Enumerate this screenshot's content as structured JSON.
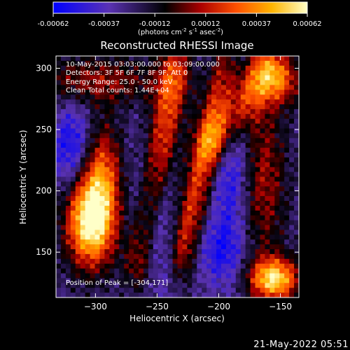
{
  "chart_data": {
    "type": "heatmap",
    "title": "Reconstructed RHESSI Image",
    "xlabel": "Heliocentric X (arcsec)",
    "ylabel": "Heliocentric Y (arcsec)",
    "xlim": [
      -332,
      -135
    ],
    "ylim": [
      113,
      310
    ],
    "xticks": [
      -300,
      -250,
      -200,
      -150
    ],
    "yticks": [
      150,
      200,
      250,
      300
    ],
    "colorbar": {
      "min": -0.00062,
      "max": 0.00062,
      "ticks": [
        "-0.00062",
        "-0.00037",
        "-0.00012",
        "0.00012",
        "0.00037",
        "0.00062"
      ],
      "unit_text": "(photons cm",
      "unit_sup1": "-2",
      "unit_mid": " s",
      "unit_sup2": "-1",
      "unit_tail": " asec",
      "unit_sup3": "-2",
      "unit_close": ")"
    },
    "annotations": [
      "10-May-2015 03:03:00.000 to 03:09:00.000",
      "Detectors: 3F 5F 6F 7F 8F 9F, Att 0",
      "Energy Range: 25.0 - 50.0 keV",
      "Clean     Total counts: 1.44E+04"
    ],
    "peak_label": "Position of Peak = [-304,171]",
    "peak": [
      -304,
      171
    ],
    "colormap": [
      "#0000ff",
      "#5a32b4",
      "#000000",
      "#aa0000",
      "#ff5000",
      "#ffb400",
      "#ffffc8"
    ]
  },
  "timestamp": "21-May-2022 05:51"
}
